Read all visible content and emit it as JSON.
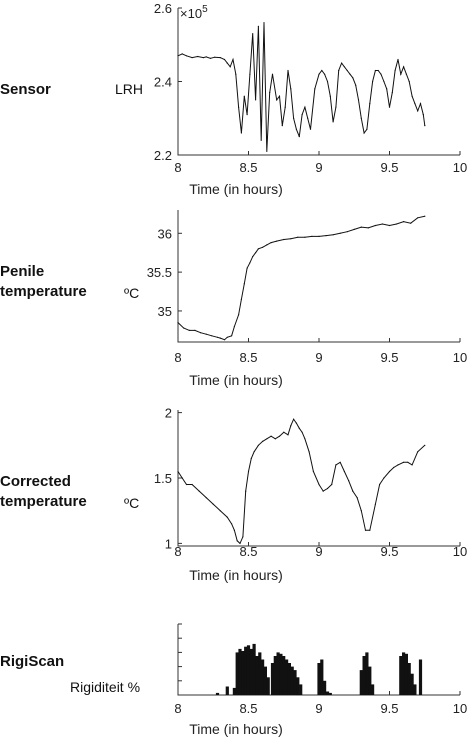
{
  "panels": [
    {
      "row_label": [
        "Sensor"
      ],
      "unit": "LRH",
      "exponent_label": "×10",
      "exponent_power": "5"
    },
    {
      "row_label": [
        "Penile",
        "temperature"
      ],
      "unit": "ºC"
    },
    {
      "row_label": [
        "Corrected",
        "temperature"
      ],
      "unit": "ºC"
    },
    {
      "row_label": [
        "RigiScan"
      ],
      "unit": "Rigiditeit %"
    }
  ],
  "chart_data": [
    {
      "type": "line",
      "xlabel": "Time (in hours)",
      "xlim": [
        8,
        10
      ],
      "xticks": [
        "8",
        "8.5",
        "9",
        "9.5",
        "10"
      ],
      "ylim": [
        2.2,
        2.6
      ],
      "yticks": [
        "2.2",
        "2.4",
        "2.6"
      ],
      "ytick_values": [
        2.2,
        2.4,
        2.6
      ],
      "x": [
        8.0,
        8.03,
        8.06,
        8.1,
        8.14,
        8.18,
        8.2,
        8.23,
        8.26,
        8.3,
        8.33,
        8.35,
        8.37,
        8.39,
        8.41,
        8.43,
        8.45,
        8.47,
        8.49,
        8.51,
        8.53,
        8.55,
        8.57,
        8.59,
        8.61,
        8.63,
        8.65,
        8.67,
        8.7,
        8.72,
        8.74,
        8.76,
        8.78,
        8.8,
        8.82,
        8.84,
        8.86,
        8.88,
        8.9,
        8.92,
        8.94,
        8.97,
        9.0,
        9.02,
        9.04,
        9.06,
        9.08,
        9.1,
        9.12,
        9.14,
        9.16,
        9.18,
        9.2,
        9.22,
        9.24,
        9.26,
        9.28,
        9.3,
        9.32,
        9.34,
        9.36,
        9.38,
        9.4,
        9.42,
        9.44,
        9.46,
        9.48,
        9.5,
        9.52,
        9.54,
        9.56,
        9.58,
        9.6,
        9.62,
        9.64,
        9.66,
        9.68,
        9.7,
        9.72,
        9.74,
        9.75
      ],
      "y": [
        2.47,
        2.475,
        2.47,
        2.465,
        2.468,
        2.465,
        2.467,
        2.463,
        2.466,
        2.465,
        2.46,
        2.45,
        2.44,
        2.46,
        2.42,
        2.33,
        2.26,
        2.36,
        2.31,
        2.42,
        2.53,
        2.35,
        2.55,
        2.24,
        2.56,
        2.21,
        2.37,
        2.42,
        2.35,
        2.36,
        2.28,
        2.33,
        2.43,
        2.38,
        2.3,
        2.27,
        2.25,
        2.31,
        2.33,
        2.3,
        2.27,
        2.38,
        2.42,
        2.43,
        2.42,
        2.4,
        2.36,
        2.29,
        2.33,
        2.43,
        2.45,
        2.44,
        2.43,
        2.42,
        2.41,
        2.39,
        2.35,
        2.3,
        2.26,
        2.27,
        2.34,
        2.4,
        2.43,
        2.43,
        2.42,
        2.4,
        2.38,
        2.33,
        2.37,
        2.43,
        2.46,
        2.42,
        2.44,
        2.42,
        2.4,
        2.36,
        2.34,
        2.32,
        2.34,
        2.31,
        2.28
      ]
    },
    {
      "type": "line",
      "xlabel": "Time (in hours)",
      "xlim": [
        8,
        10
      ],
      "xticks": [
        "8",
        "8.5",
        "9",
        "9.5",
        "10"
      ],
      "ylim": [
        34.6,
        36.3
      ],
      "yticks": [
        "35",
        "35.5",
        "36"
      ],
      "ytick_values": [
        35,
        35.5,
        36
      ],
      "x": [
        8.0,
        8.04,
        8.08,
        8.12,
        8.16,
        8.2,
        8.24,
        8.28,
        8.3,
        8.33,
        8.35,
        8.38,
        8.4,
        8.43,
        8.45,
        8.47,
        8.49,
        8.51,
        8.53,
        8.55,
        8.57,
        8.6,
        8.63,
        8.66,
        8.7,
        8.75,
        8.8,
        8.85,
        8.9,
        8.95,
        9.0,
        9.05,
        9.1,
        9.15,
        9.2,
        9.25,
        9.3,
        9.35,
        9.4,
        9.45,
        9.5,
        9.55,
        9.6,
        9.65,
        9.7,
        9.75
      ],
      "y": [
        34.85,
        34.78,
        34.75,
        34.75,
        34.72,
        34.7,
        34.68,
        34.66,
        34.65,
        34.63,
        34.66,
        34.68,
        34.8,
        34.95,
        35.15,
        35.35,
        35.55,
        35.62,
        35.7,
        35.75,
        35.8,
        35.82,
        35.85,
        35.88,
        35.9,
        35.92,
        35.93,
        35.95,
        35.95,
        35.96,
        35.96,
        35.97,
        35.98,
        36.0,
        36.02,
        36.05,
        36.08,
        36.07,
        36.1,
        36.12,
        36.1,
        36.12,
        36.15,
        36.13,
        36.2,
        36.22
      ]
    },
    {
      "type": "line",
      "xlabel": "Time (in hours)",
      "xlim": [
        8,
        10
      ],
      "xticks": [
        "8",
        "8.5",
        "9",
        "9.5",
        "10"
      ],
      "ylim": [
        0.98,
        2.02
      ],
      "yticks": [
        "1",
        "1.5",
        "2"
      ],
      "ytick_values": [
        1,
        1.5,
        2
      ],
      "x": [
        8.0,
        8.03,
        8.06,
        8.1,
        8.15,
        8.2,
        8.25,
        8.3,
        8.35,
        8.38,
        8.4,
        8.42,
        8.44,
        8.46,
        8.48,
        8.5,
        8.52,
        8.54,
        8.57,
        8.6,
        8.63,
        8.66,
        8.69,
        8.72,
        8.75,
        8.78,
        8.8,
        8.82,
        8.84,
        8.86,
        8.88,
        8.9,
        8.93,
        8.96,
        9.0,
        9.03,
        9.06,
        9.09,
        9.12,
        9.15,
        9.18,
        9.21,
        9.24,
        9.27,
        9.3,
        9.33,
        9.36,
        9.4,
        9.43,
        9.46,
        9.5,
        9.53,
        9.56,
        9.6,
        9.63,
        9.66,
        9.7,
        9.75
      ],
      "y": [
        1.55,
        1.5,
        1.45,
        1.45,
        1.4,
        1.35,
        1.3,
        1.25,
        1.2,
        1.15,
        1.1,
        1.02,
        1.0,
        1.05,
        1.4,
        1.55,
        1.65,
        1.7,
        1.75,
        1.78,
        1.8,
        1.82,
        1.8,
        1.82,
        1.85,
        1.83,
        1.9,
        1.95,
        1.92,
        1.88,
        1.85,
        1.8,
        1.7,
        1.55,
        1.45,
        1.4,
        1.42,
        1.45,
        1.6,
        1.62,
        1.55,
        1.48,
        1.4,
        1.35,
        1.25,
        1.1,
        1.1,
        1.3,
        1.45,
        1.5,
        1.55,
        1.58,
        1.6,
        1.62,
        1.62,
        1.6,
        1.7,
        1.75
      ]
    },
    {
      "type": "bar",
      "xlabel": "Time (in hours)",
      "xlim": [
        8,
        10
      ],
      "xticks": [
        "8",
        "8.5",
        "9",
        "9.5",
        "10"
      ],
      "ylim": [
        0,
        100
      ],
      "yticks": [],
      "ytick_values": [
        0,
        20,
        40,
        60,
        80,
        100
      ],
      "x": [
        8.28,
        8.35,
        8.4,
        8.42,
        8.44,
        8.46,
        8.48,
        8.5,
        8.52,
        8.54,
        8.56,
        8.58,
        8.6,
        8.62,
        8.64,
        8.67,
        8.69,
        8.71,
        8.73,
        8.75,
        8.77,
        8.79,
        8.81,
        8.83,
        8.85,
        8.87,
        9.0,
        9.02,
        9.04,
        9.06,
        9.08,
        9.3,
        9.32,
        9.34,
        9.36,
        9.38,
        9.58,
        9.6,
        9.62,
        9.64,
        9.66,
        9.68,
        9.72
      ],
      "values": [
        3,
        12,
        10,
        60,
        65,
        62,
        68,
        70,
        65,
        72,
        55,
        60,
        50,
        40,
        25,
        45,
        55,
        60,
        58,
        55,
        50,
        45,
        40,
        35,
        25,
        15,
        45,
        50,
        20,
        5,
        3,
        35,
        55,
        60,
        40,
        15,
        55,
        60,
        58,
        45,
        30,
        15,
        50
      ]
    }
  ]
}
